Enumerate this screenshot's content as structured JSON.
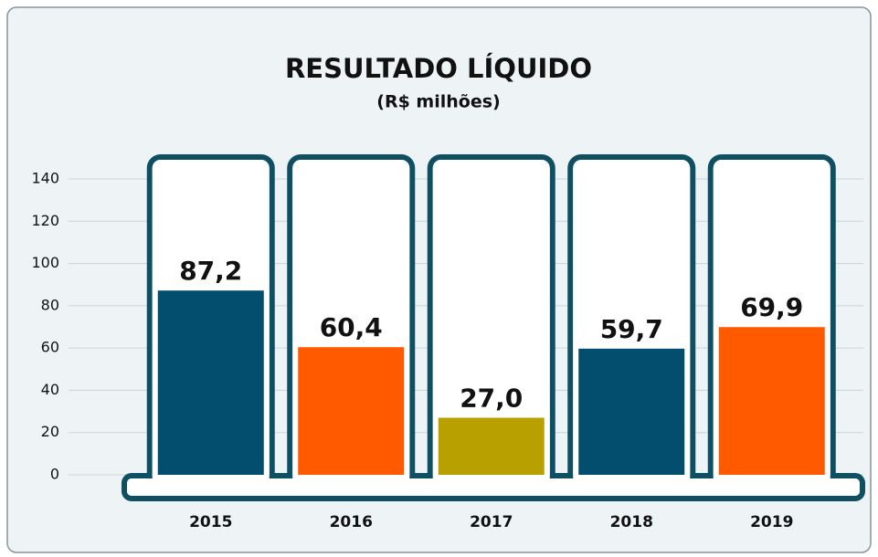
{
  "chart_data": {
    "type": "bar",
    "title": "RESULTADO LÍQUIDO",
    "subtitle": "(R$ milhões)",
    "categories": [
      "2015",
      "2016",
      "2017",
      "2018",
      "2019"
    ],
    "values": [
      87.2,
      60.4,
      27.0,
      59.7,
      69.9
    ],
    "value_labels": [
      "87,2",
      "60,4",
      "27,0",
      "59,7",
      "69,9"
    ],
    "colors": [
      "#034e6e",
      "#ff5a00",
      "#b8a000",
      "#034e6e",
      "#ff5a00"
    ],
    "ylim": [
      0,
      140
    ],
    "yticks": [
      0,
      20,
      40,
      60,
      80,
      100,
      120,
      140
    ],
    "grid": true
  }
}
